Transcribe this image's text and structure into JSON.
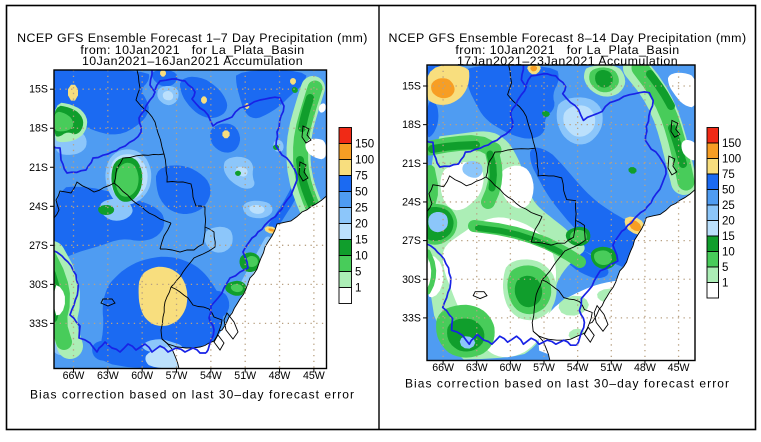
{
  "figure": {
    "background": "#ffffff",
    "border_color": "#000000",
    "text_color": "#000000",
    "caption_color": "#3737f8",
    "basin_outline_color": "#1822e6",
    "grid_dot_color": "#b9a182",
    "country_border_color": "#000000"
  },
  "legend": {
    "values": [
      "150",
      "100",
      "75",
      "50",
      "25",
      "20",
      "15",
      "10",
      "5",
      "1"
    ],
    "box_colors_top_to_bottom": [
      "#f02a16",
      "#f79e24",
      "#f8de7e",
      "#1b6af2",
      "#4f9cf2",
      "#8cc6fa",
      "#bbe0fc",
      "#109e2c",
      "#48cc5a",
      "#aceeb6",
      "#ffffff"
    ],
    "color_names": {
      "red": "#f02a16",
      "orange": "#f79e24",
      "yellow": "#f8de7e",
      "blue_50_75": "#1b6af2",
      "blue_25_50": "#4f9cf2",
      "blue_20_25": "#8cc6fa",
      "blue_15_20": "#bbe0fc",
      "green_10_15": "#109e2c",
      "green_5_10": "#48cc5a",
      "green_1_5": "#aceeb6",
      "white_lt_1": "#ffffff"
    }
  },
  "panels": [
    {
      "id": "left",
      "title_line1": "NCEP GFS Ensemble Forecast 1–7 Day Precipitation (mm)",
      "title_line2": "from: 10Jan2021   for La_Plata_Basin",
      "title_line3": "10Jan2021–16Jan2021 Accumulation",
      "caption": "Bias correction based on last 30–day forecast error",
      "lat_labels": [
        "15S",
        "18S",
        "21S",
        "24S",
        "27S",
        "30S",
        "33S"
      ],
      "lon_labels": [
        "66W",
        "63W",
        "60W",
        "57W",
        "54W",
        "51W",
        "48W",
        "45W"
      ]
    },
    {
      "id": "right",
      "title_line1": "NCEP GFS Ensemble Forecast 8–14 Day Precipitation (mm)",
      "title_line2": "from: 10Jan2021   for La_Plata_Basin",
      "title_line3": "17Jan2021–23Jan2021 Accumulation",
      "caption": "Bias correction based on last 30–day forecast error",
      "lat_labels": [
        "15S",
        "18S",
        "21S",
        "24S",
        "27S",
        "30S",
        "33S"
      ],
      "lon_labels": [
        "66W",
        "63W",
        "60W",
        "57W",
        "54W",
        "51W",
        "48W",
        "45W"
      ]
    }
  ]
}
